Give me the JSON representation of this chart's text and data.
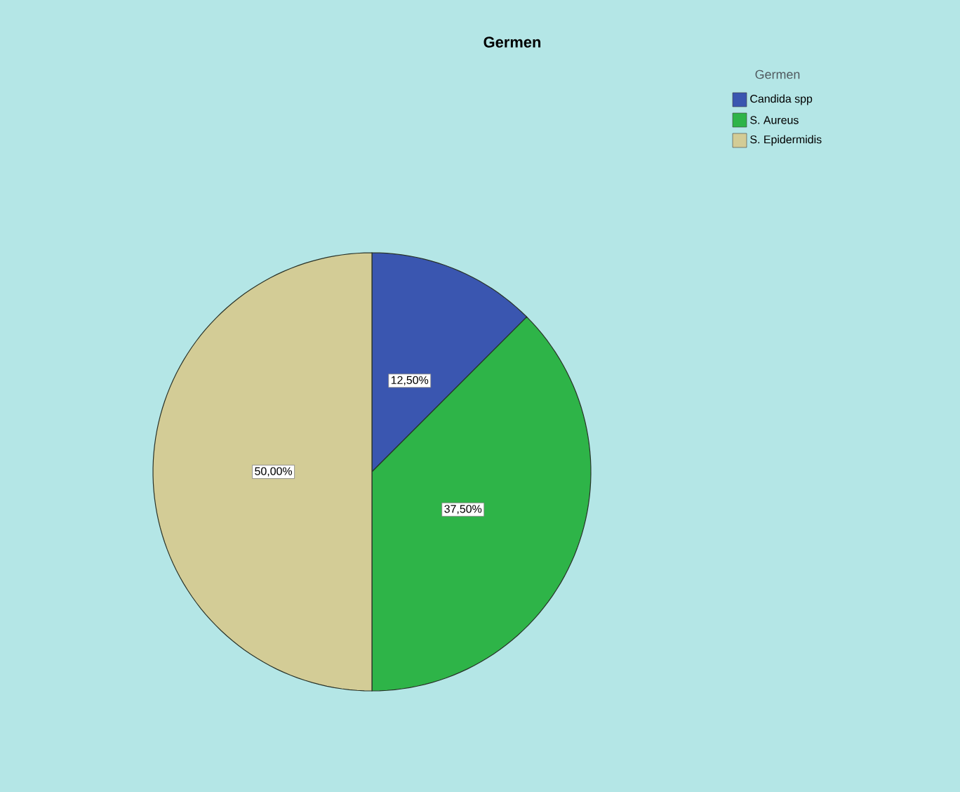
{
  "chart_data": {
    "type": "pie",
    "title": "Germen",
    "legend_title": "Germen",
    "categories": [
      "Candida spp",
      "S. Aureus",
      "S. Epidermidis"
    ],
    "values": [
      12.5,
      37.5,
      50
    ],
    "colors": [
      "#3a56b0",
      "#2eb448",
      "#d3cc96"
    ],
    "value_labels": [
      "12,50%",
      "37,50%",
      "50,00%"
    ],
    "legend": "top right"
  }
}
